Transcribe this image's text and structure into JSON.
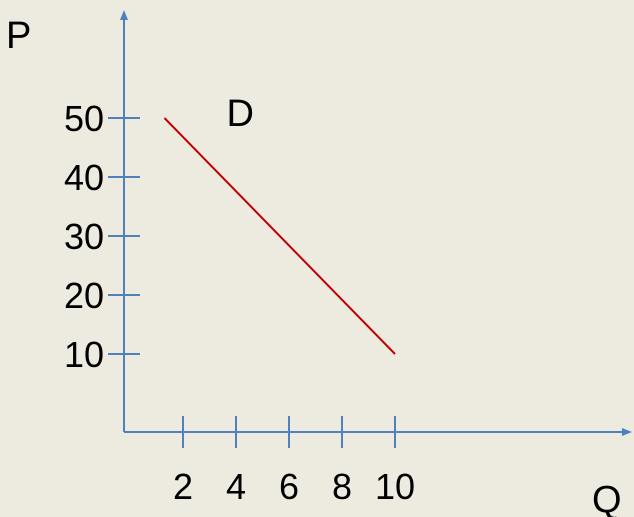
{
  "chart_data": {
    "type": "line",
    "title": "",
    "xlabel": "Q",
    "ylabel": "P",
    "xlim": [
      0,
      10
    ],
    "ylim": [
      0,
      50
    ],
    "x_ticks": [
      2,
      4,
      6,
      8,
      10
    ],
    "y_ticks": [
      10,
      20,
      30,
      40,
      50
    ],
    "grid": false,
    "series": [
      {
        "name": "D",
        "x": [
          1.3,
          10
        ],
        "y": [
          50,
          10
        ]
      }
    ]
  },
  "colors": {
    "background": "#edeae0",
    "axis": "#4f81bd",
    "series": "#c00000",
    "text": "#000000"
  }
}
